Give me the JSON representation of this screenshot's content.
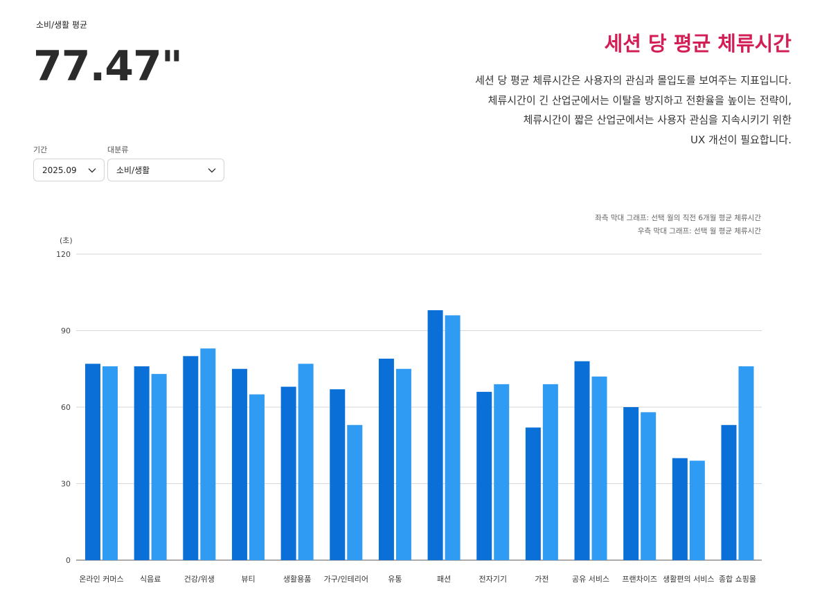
{
  "metric": {
    "label": "소비/생활 평균",
    "value": "77.47\""
  },
  "filters": [
    {
      "label": "기간",
      "value": "2025.09"
    },
    {
      "label": "대분류",
      "value": "소비/생활"
    }
  ],
  "headline": "세션 당 평균 체류시간",
  "description": [
    "세션 당 평균 체류시간은 사용자의 관심과 몰입도를 보여주는 지표입니다.",
    "체류시간이 긴 산업군에서는 이탈을 방지하고 전환율을 높이는 전략이,",
    "체류시간이 짧은 산업군에서는 사용자 관심을 지속시키기 위한",
    "UX 개선이 필요합니다."
  ],
  "legend_notes": [
    "좌측 막대 그래프: 선택 월의 직전 6개월 평균 체류시간",
    "우측 막대 그래프: 선택 월 평균 체류시간"
  ],
  "colors": {
    "accent": "#d31e55",
    "bar_left": "#0a6fd6",
    "bar_right": "#2f9bf3",
    "grid": "#d6d6d6"
  },
  "icons": {
    "dropdown": "chevron-down-icon"
  },
  "chart_data": {
    "type": "bar",
    "ylabel": "(초)",
    "ylim": [
      0,
      120
    ],
    "yticks": [
      0,
      30,
      60,
      90,
      120
    ],
    "grid": true,
    "categories": [
      "온라인 커머스",
      "식음료",
      "건강/위생",
      "뷰티",
      "생활용품",
      "가구/인테리어",
      "유통",
      "패션",
      "전자기기",
      "가전",
      "공유 서비스",
      "프랜차이즈",
      "생활편의 서비스",
      "종합 쇼핑몰"
    ],
    "series": [
      {
        "values": [
          77,
          76,
          80,
          75,
          68,
          67,
          79,
          98,
          66,
          52,
          78,
          60,
          40,
          53
        ]
      },
      {
        "values": [
          76,
          73,
          83,
          65,
          77,
          53,
          75,
          96,
          69,
          69,
          72,
          58,
          39,
          76
        ]
      }
    ]
  }
}
